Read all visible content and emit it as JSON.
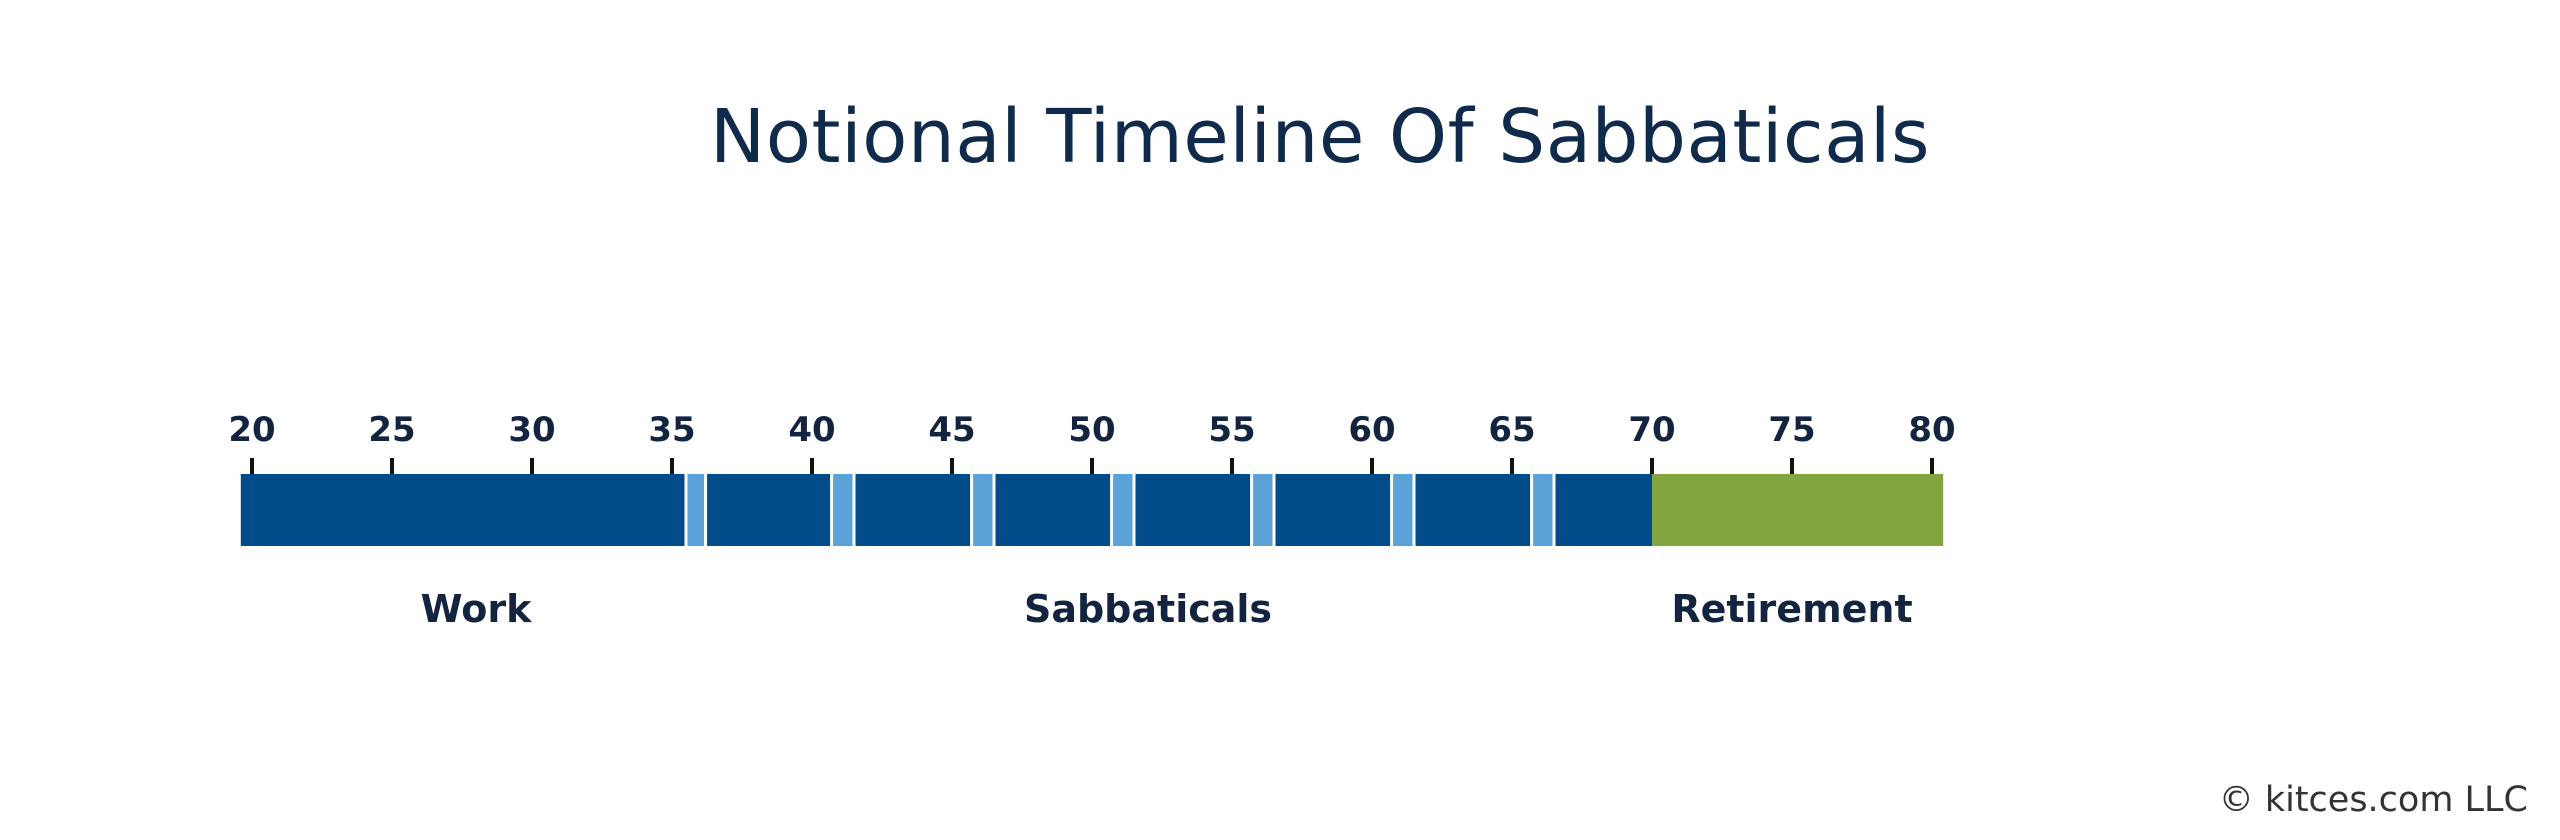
{
  "title": "Notional Timeline Of Sabbaticals",
  "credit": "© kitces.com LLC",
  "colors": {
    "title": "#0f2a4a",
    "label": "#132440",
    "work": "#024b89",
    "sabbatical": "#5aa2d8",
    "retirement": "#83a53f",
    "tick": "#111111",
    "separator": "#ffffff"
  },
  "axis": {
    "min": 20,
    "max": 80,
    "ticks": [
      20,
      25,
      30,
      35,
      40,
      45,
      50,
      55,
      60,
      65,
      70,
      75,
      80
    ]
  },
  "segments": [
    {
      "kind": "work",
      "start": 19.6,
      "end": 35.5
    },
    {
      "kind": "sabbatical",
      "start": 35.5,
      "end": 36.2
    },
    {
      "kind": "work",
      "start": 36.2,
      "end": 40.7
    },
    {
      "kind": "sabbatical",
      "start": 40.7,
      "end": 41.5
    },
    {
      "kind": "work",
      "start": 41.5,
      "end": 45.7
    },
    {
      "kind": "sabbatical",
      "start": 45.7,
      "end": 46.5
    },
    {
      "kind": "work",
      "start": 46.5,
      "end": 50.7
    },
    {
      "kind": "sabbatical",
      "start": 50.7,
      "end": 51.5
    },
    {
      "kind": "work",
      "start": 51.5,
      "end": 55.7
    },
    {
      "kind": "sabbatical",
      "start": 55.7,
      "end": 56.5
    },
    {
      "kind": "work",
      "start": 56.5,
      "end": 60.7
    },
    {
      "kind": "sabbatical",
      "start": 60.7,
      "end": 61.5
    },
    {
      "kind": "work",
      "start": 61.5,
      "end": 65.7
    },
    {
      "kind": "sabbatical",
      "start": 65.7,
      "end": 66.5
    },
    {
      "kind": "work",
      "start": 66.5,
      "end": 70.0
    },
    {
      "kind": "retirement",
      "start": 70.0,
      "end": 80.4
    }
  ],
  "phase_labels": [
    {
      "text": "Work",
      "at": 28.0
    },
    {
      "text": "Sabbaticals",
      "at": 52.0
    },
    {
      "text": "Retirement",
      "at": 75.0
    }
  ]
}
